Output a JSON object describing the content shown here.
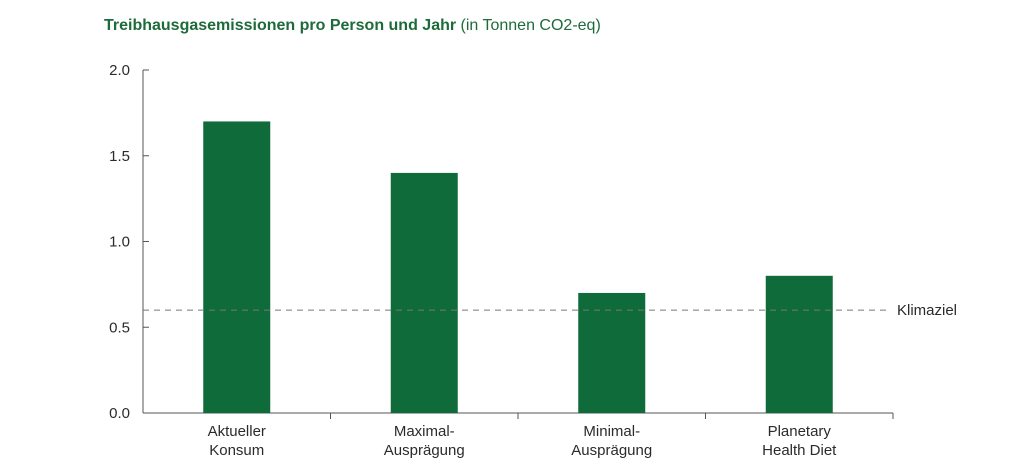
{
  "chart_data": {
    "type": "bar",
    "title": "Treibhausgasemissionen pro Person und Jahr",
    "subtitle": "(in Tonnen CO2-eq)",
    "categories": [
      [
        "Aktueller",
        "Konsum"
      ],
      [
        "Maximal-",
        "Ausprägung"
      ],
      [
        "Minimal-",
        "Ausprägung"
      ],
      [
        "Planetary",
        "Health Diet"
      ]
    ],
    "values": [
      1.7,
      1.4,
      0.7,
      0.8
    ],
    "ylim": [
      0,
      2.0
    ],
    "yticks": [
      "0.0",
      "0.5",
      "1.0",
      "1.5",
      "2.0"
    ],
    "ytick_values": [
      0,
      0.5,
      1.0,
      1.5,
      2.0
    ],
    "reference_line": {
      "label": "Klimaziel",
      "value": 0.6,
      "style": "dashed"
    },
    "grid": false,
    "colors": {
      "bar": "#0f6b3a",
      "title": "#1e6b3a",
      "axis": "#555555",
      "reference": "#777777"
    }
  }
}
